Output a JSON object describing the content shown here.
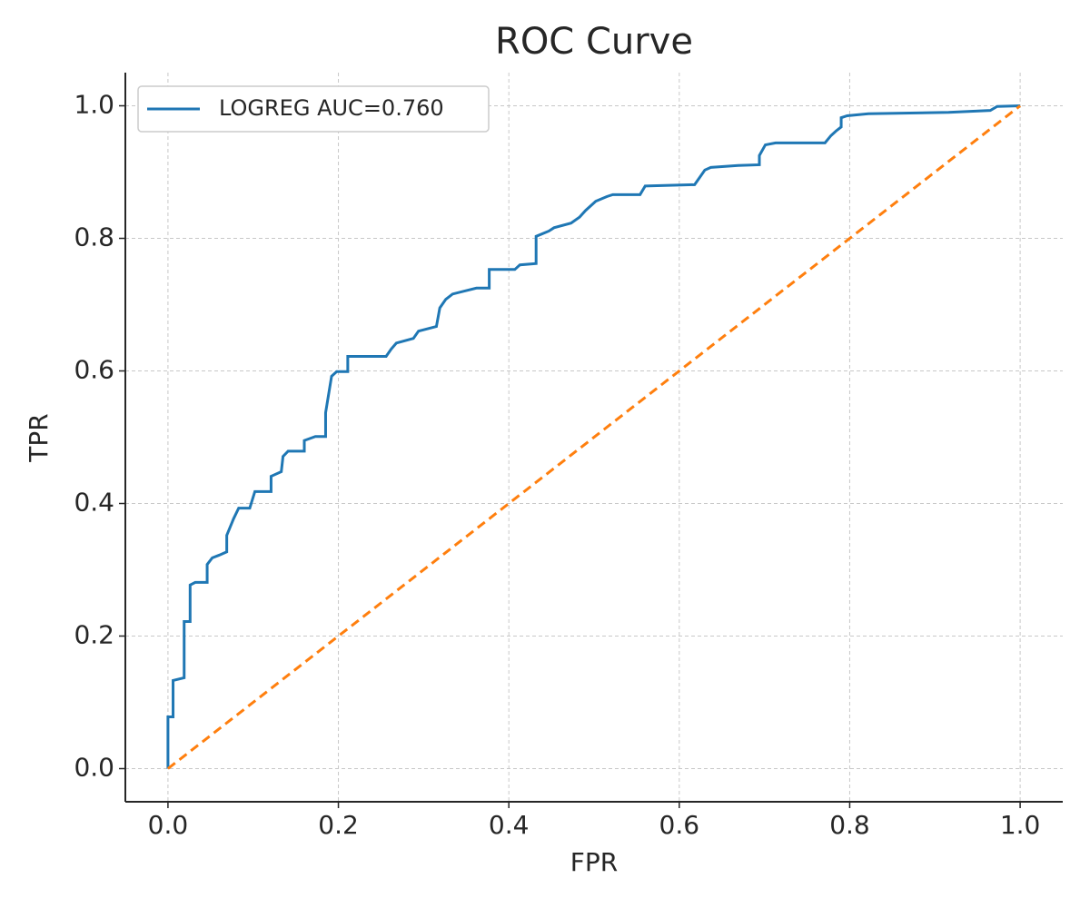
{
  "chart_data": {
    "type": "line",
    "title": "ROC Curve",
    "x_label": "FPR",
    "y_label": "TPR",
    "xlim": [
      -0.05,
      1.05
    ],
    "ylim": [
      -0.05,
      1.05
    ],
    "xticks": [
      {
        "value": 0,
        "label": "0.0"
      },
      0.2,
      0.4,
      0.6,
      0.8,
      {
        "value": 1,
        "label": "1.0"
      }
    ],
    "yticks": [
      {
        "value": 0,
        "label": "0.0"
      },
      0.2,
      0.4,
      0.6,
      0.8,
      {
        "value": 1,
        "label": "1.0"
      }
    ],
    "grid": true,
    "legend": "upper left",
    "series": [
      {
        "name": "LOGREG AUC=0.760",
        "color": "#1f77b4",
        "style": "solid",
        "x": [
          0,
          0,
          0.006,
          0.006,
          0.019,
          0.019,
          0.026,
          0.026,
          0.032,
          0.046,
          0.046,
          0.052,
          0.06,
          0.069,
          0.069,
          0.077,
          0.083,
          0.096,
          0.102,
          0.121,
          0.121,
          0.133,
          0.135,
          0.141,
          0.16,
          0.16,
          0.173,
          0.185,
          0.185,
          0.192,
          0.198,
          0.211,
          0.211,
          0.256,
          0.262,
          0.268,
          0.288,
          0.294,
          0.315,
          0.319,
          0.326,
          0.334,
          0.362,
          0.377,
          0.377,
          0.407,
          0.413,
          0.432,
          0.432,
          0.447,
          0.453,
          0.473,
          0.483,
          0.49,
          0.502,
          0.515,
          0.522,
          0.554,
          0.56,
          0.618,
          0.624,
          0.63,
          0.637,
          0.669,
          0.694,
          0.694,
          0.701,
          0.713,
          0.771,
          0.778,
          0.784,
          0.79,
          0.79,
          0.797,
          0.822,
          0.916,
          0.965,
          0.973,
          1
        ],
        "y": [
          0,
          0.078,
          0.078,
          0.133,
          0.137,
          0.222,
          0.222,
          0.277,
          0.281,
          0.281,
          0.308,
          0.318,
          0.322,
          0.327,
          0.352,
          0.377,
          0.393,
          0.393,
          0.418,
          0.418,
          0.441,
          0.448,
          0.471,
          0.479,
          0.479,
          0.495,
          0.501,
          0.501,
          0.537,
          0.592,
          0.599,
          0.599,
          0.622,
          0.622,
          0.633,
          0.642,
          0.649,
          0.66,
          0.667,
          0.695,
          0.708,
          0.716,
          0.725,
          0.725,
          0.753,
          0.753,
          0.76,
          0.762,
          0.803,
          0.811,
          0.816,
          0.823,
          0.832,
          0.842,
          0.856,
          0.863,
          0.866,
          0.866,
          0.879,
          0.881,
          0.892,
          0.903,
          0.907,
          0.91,
          0.911,
          0.925,
          0.941,
          0.944,
          0.944,
          0.955,
          0.962,
          0.968,
          0.982,
          0.985,
          0.988,
          0.99,
          0.993,
          0.999,
          1
        ]
      },
      {
        "color": "#ff7f0e",
        "style": "dashed",
        "x": [
          0,
          1
        ],
        "y": [
          0,
          1
        ]
      }
    ]
  }
}
